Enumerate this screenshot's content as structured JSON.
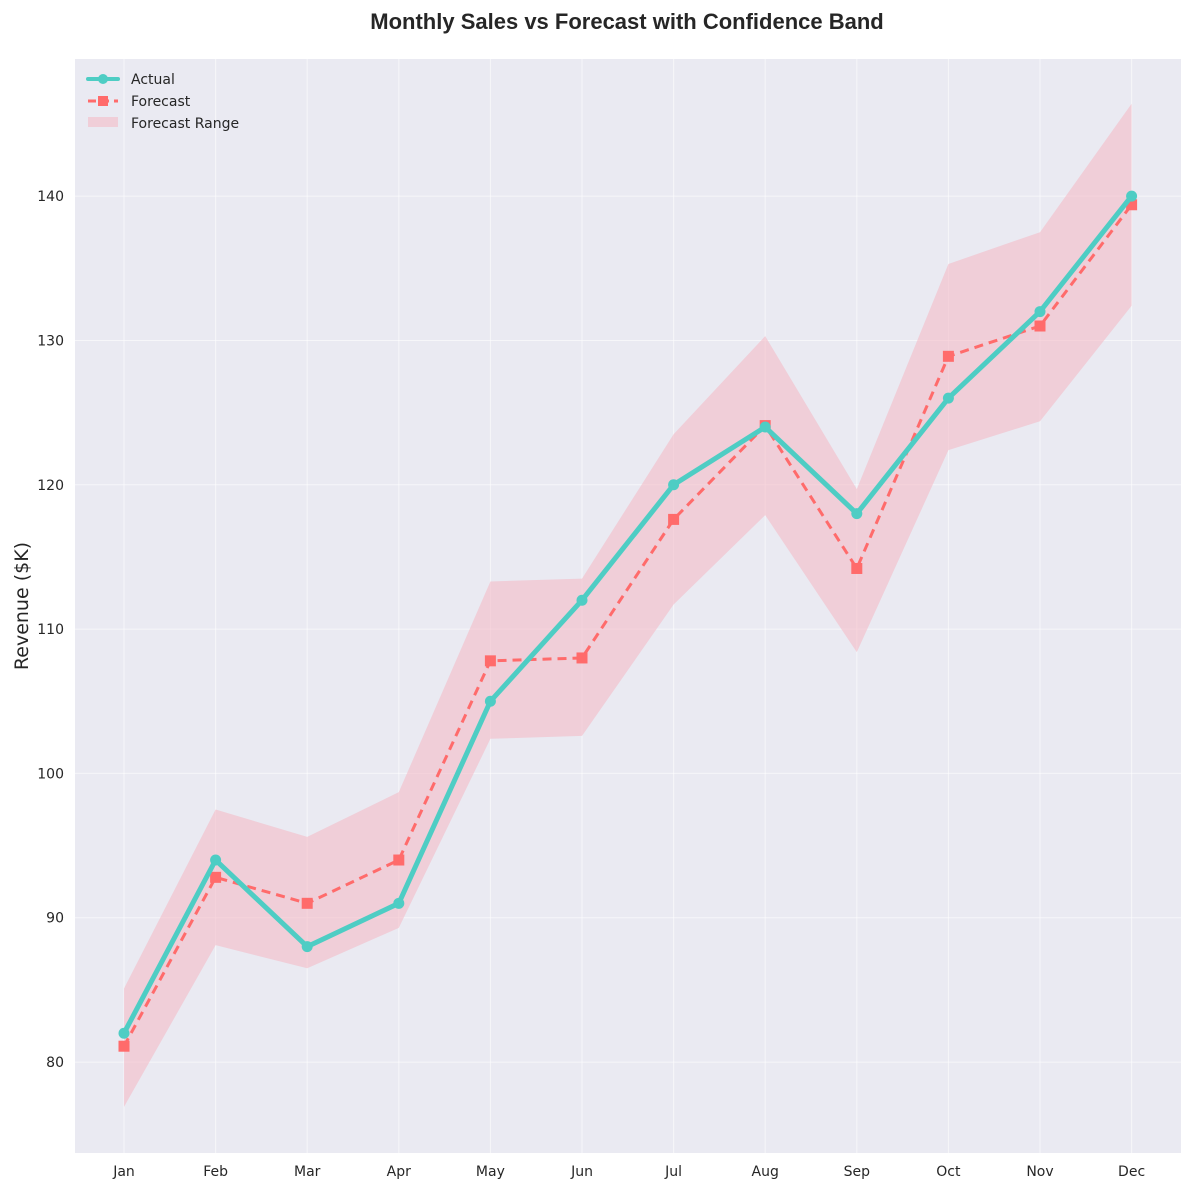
{
  "chart_data": {
    "type": "line",
    "title": "Monthly Sales vs Forecast with Confidence Band",
    "xlabel": "",
    "ylabel": "Revenue ($K)",
    "categories": [
      "Jan",
      "Feb",
      "Mar",
      "Apr",
      "May",
      "Jun",
      "Jul",
      "Aug",
      "Sep",
      "Oct",
      "Nov",
      "Dec"
    ],
    "ylim": [
      73.7,
      149.5
    ],
    "yticks": [
      80,
      90,
      100,
      110,
      120,
      130,
      140
    ],
    "grid": true,
    "legend_position": "top-left",
    "series": [
      {
        "name": "Actual",
        "style": "solid-circle",
        "color": "#4ECDC4",
        "values": [
          82,
          94,
          88,
          91,
          105,
          112,
          120,
          124,
          118,
          126,
          132,
          140
        ]
      },
      {
        "name": "Forecast",
        "style": "dashed-square",
        "color": "#FF6B6B",
        "values": [
          81.1,
          92.8,
          91.0,
          94.0,
          107.8,
          108.0,
          117.6,
          124.1,
          114.2,
          128.9,
          131.0,
          139.4
        ]
      }
    ],
    "band": {
      "name": "Forecast Range",
      "color": "#F4B6C2",
      "lower": [
        76.9,
        88.1,
        86.5,
        89.3,
        102.4,
        102.6,
        111.7,
        117.9,
        108.4,
        122.4,
        124.4,
        132.4
      ],
      "upper": [
        85.1,
        97.5,
        95.6,
        98.7,
        113.3,
        113.5,
        123.5,
        130.3,
        119.7,
        135.3,
        137.5,
        146.4
      ]
    }
  }
}
